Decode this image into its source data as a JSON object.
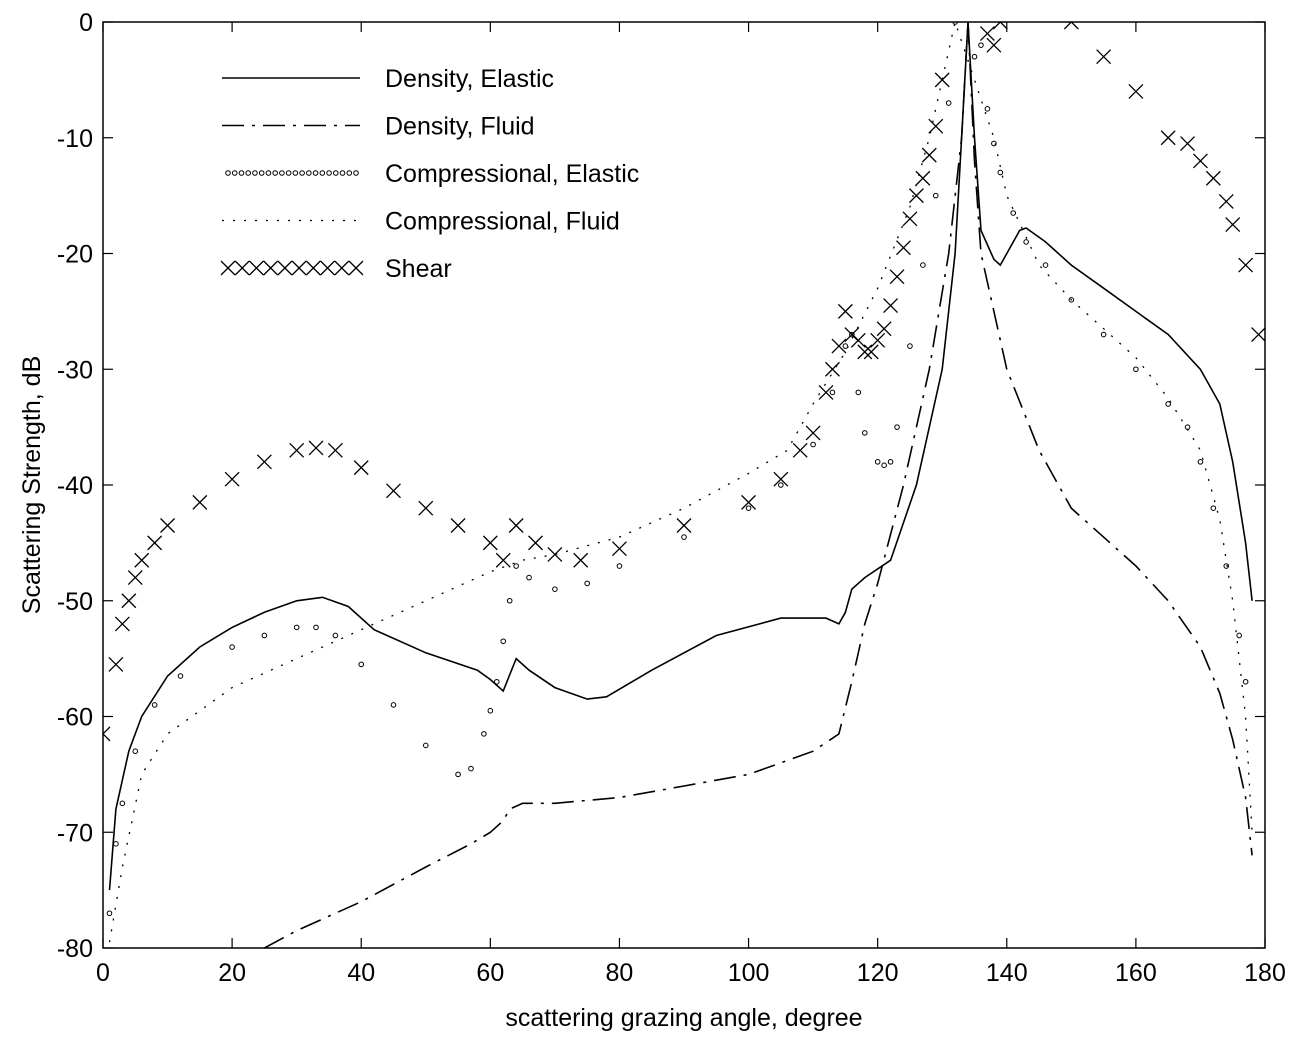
{
  "chart_data": {
    "type": "line",
    "xlabel": "scattering grazing angle, degree",
    "ylabel": "Scattering Strength, dB",
    "xlim": [
      0,
      180
    ],
    "ylim": [
      -80,
      0
    ],
    "xticks": [
      0,
      20,
      40,
      60,
      80,
      100,
      120,
      140,
      160,
      180
    ],
    "yticks": [
      0,
      -10,
      -20,
      -30,
      -40,
      -50,
      -60,
      -70,
      -80
    ],
    "legend": "upper-left",
    "series": [
      {
        "name": "Density, Elastic",
        "color": "#000000",
        "style": "solid",
        "x": [
          1,
          2,
          4,
          6,
          10,
          15,
          20,
          25,
          30,
          34,
          38,
          42,
          50,
          58,
          60,
          62,
          64,
          66,
          70,
          75,
          78,
          85,
          95,
          105,
          112,
          114,
          115,
          116,
          118,
          122,
          126,
          130,
          132,
          133,
          134,
          135,
          136,
          138,
          139,
          140,
          142,
          143,
          146,
          150,
          155,
          160,
          165,
          170,
          173,
          175,
          177,
          178
        ],
        "values": [
          -75,
          -68,
          -63,
          -60,
          -56.5,
          -54,
          -52.3,
          -51,
          -50,
          -49.7,
          -50.5,
          -52.5,
          -54.5,
          -56,
          -56.8,
          -57.8,
          -55,
          -56,
          -57.5,
          -58.5,
          -58.3,
          -56,
          -53,
          -51.5,
          -51.5,
          -52,
          -51,
          -49,
          -48,
          -46.5,
          -40,
          -30,
          -20,
          -10,
          0,
          -10,
          -18,
          -20.5,
          -21,
          -20,
          -18,
          -17.8,
          -19,
          -21,
          -23,
          -25,
          -27,
          -30,
          -33,
          -38,
          -45,
          -50
        ]
      },
      {
        "name": "Density, Fluid",
        "color": "#000000",
        "style": "dashdot",
        "x": [
          25,
          30,
          40,
          50,
          57,
          60,
          62,
          63,
          65,
          70,
          80,
          90,
          100,
          110,
          114,
          116,
          118,
          120,
          124,
          128,
          131,
          133,
          134,
          135,
          136,
          138,
          140,
          145,
          150,
          160,
          165,
          170,
          173,
          175,
          177,
          178
        ],
        "values": [
          -80,
          -78.5,
          -76,
          -73,
          -71,
          -70,
          -69,
          -68,
          -67.5,
          -67.5,
          -67,
          -66,
          -65,
          -63,
          -61.5,
          -57,
          -52,
          -48.5,
          -40,
          -30,
          -20,
          -10,
          0,
          -12,
          -20,
          -25,
          -30,
          -37,
          -42,
          -47,
          -50,
          -54,
          -58,
          -62,
          -67,
          -72
        ]
      },
      {
        "name": "Compressional, Elastic",
        "color": "#000000",
        "style": "circles",
        "x": [
          1,
          2,
          3,
          5,
          8,
          12,
          20,
          25,
          30,
          33,
          36,
          40,
          45,
          50,
          55,
          57,
          59,
          60,
          61,
          62,
          63,
          64,
          66,
          70,
          75,
          80,
          90,
          100,
          105,
          110,
          113,
          115,
          116,
          117,
          118,
          120,
          121,
          122,
          123,
          125,
          127,
          129,
          131,
          132,
          135,
          136,
          137,
          138,
          139,
          141,
          143,
          146,
          150,
          155,
          160,
          165,
          168,
          170,
          172,
          174,
          176,
          177
        ],
        "values": [
          -77,
          -71,
          -67.5,
          -63,
          -59,
          -56.5,
          -54,
          -53,
          -52.3,
          -52.3,
          -53,
          -55.5,
          -59,
          -62.5,
          -65,
          -64.5,
          -61.5,
          -59.5,
          -57,
          -53.5,
          -50,
          -47,
          -48,
          -49,
          -48.5,
          -47,
          -44.5,
          -42,
          -40,
          -36.5,
          -32,
          -28,
          -27,
          -32,
          -35.5,
          -38,
          -38.3,
          -38,
          -35,
          -28,
          -21,
          -15,
          -7,
          0,
          -3,
          -2,
          -7.5,
          -10.5,
          -13,
          -16.5,
          -19,
          -21,
          -24,
          -27,
          -30,
          -33,
          -35,
          -38,
          -42,
          -47,
          -53,
          -57
        ]
      },
      {
        "name": "Compressional, Fluid",
        "color": "#000000",
        "style": "dotted",
        "x": [
          1,
          3,
          6,
          10,
          20,
          30,
          40,
          50,
          60,
          65,
          70,
          80,
          90,
          100,
          106,
          110,
          115,
          120,
          125,
          128,
          130,
          132,
          138,
          140,
          145,
          150,
          155,
          160,
          165,
          170,
          173,
          175,
          177,
          178
        ],
        "values": [
          -79.5,
          -73,
          -65,
          -61.5,
          -57.5,
          -55,
          -52.5,
          -50,
          -47.5,
          -46.5,
          -46,
          -44.5,
          -42,
          -39,
          -37,
          -33,
          -28.5,
          -23,
          -16,
          -10,
          -5,
          0,
          -10,
          -15,
          -21,
          -24,
          -26.5,
          -29,
          -32.5,
          -37,
          -43,
          -50,
          -60,
          -70
        ]
      },
      {
        "name": "Shear",
        "color": "#000000",
        "style": "x",
        "x": [
          0,
          2,
          3,
          4,
          5,
          6,
          8,
          10,
          15,
          20,
          25,
          30,
          33,
          36,
          40,
          45,
          50,
          55,
          60,
          62,
          64,
          67,
          70,
          74,
          80,
          90,
          100,
          105,
          108,
          110,
          112,
          113,
          114,
          115,
          116,
          117,
          118,
          119,
          120,
          121,
          122,
          123,
          124,
          125,
          126,
          127,
          128,
          129,
          130,
          137,
          138,
          139,
          150,
          155,
          160,
          165,
          168,
          170,
          172,
          174,
          175,
          177,
          179
        ],
        "values": [
          -61.5,
          -55.5,
          -52,
          -50,
          -48,
          -46.5,
          -45,
          -43.5,
          -41.5,
          -39.5,
          -38,
          -37,
          -36.8,
          -37,
          -38.5,
          -40.5,
          -42,
          -43.5,
          -45,
          -46.5,
          -43.5,
          -45,
          -46,
          -46.5,
          -45.5,
          -43.5,
          -41.5,
          -39.5,
          -37,
          -35.5,
          -32,
          -30,
          -28,
          -25,
          -27,
          -27.5,
          -28.5,
          -28.5,
          -27.5,
          -26.5,
          -24.5,
          -22,
          -19.5,
          -17,
          -15,
          -13.5,
          -11.5,
          -9,
          -5,
          -1,
          -2,
          0,
          0,
          -3,
          -6,
          -10,
          -10.5,
          -12,
          -13.5,
          -15.5,
          -17.5,
          -21,
          -27
        ]
      }
    ]
  }
}
